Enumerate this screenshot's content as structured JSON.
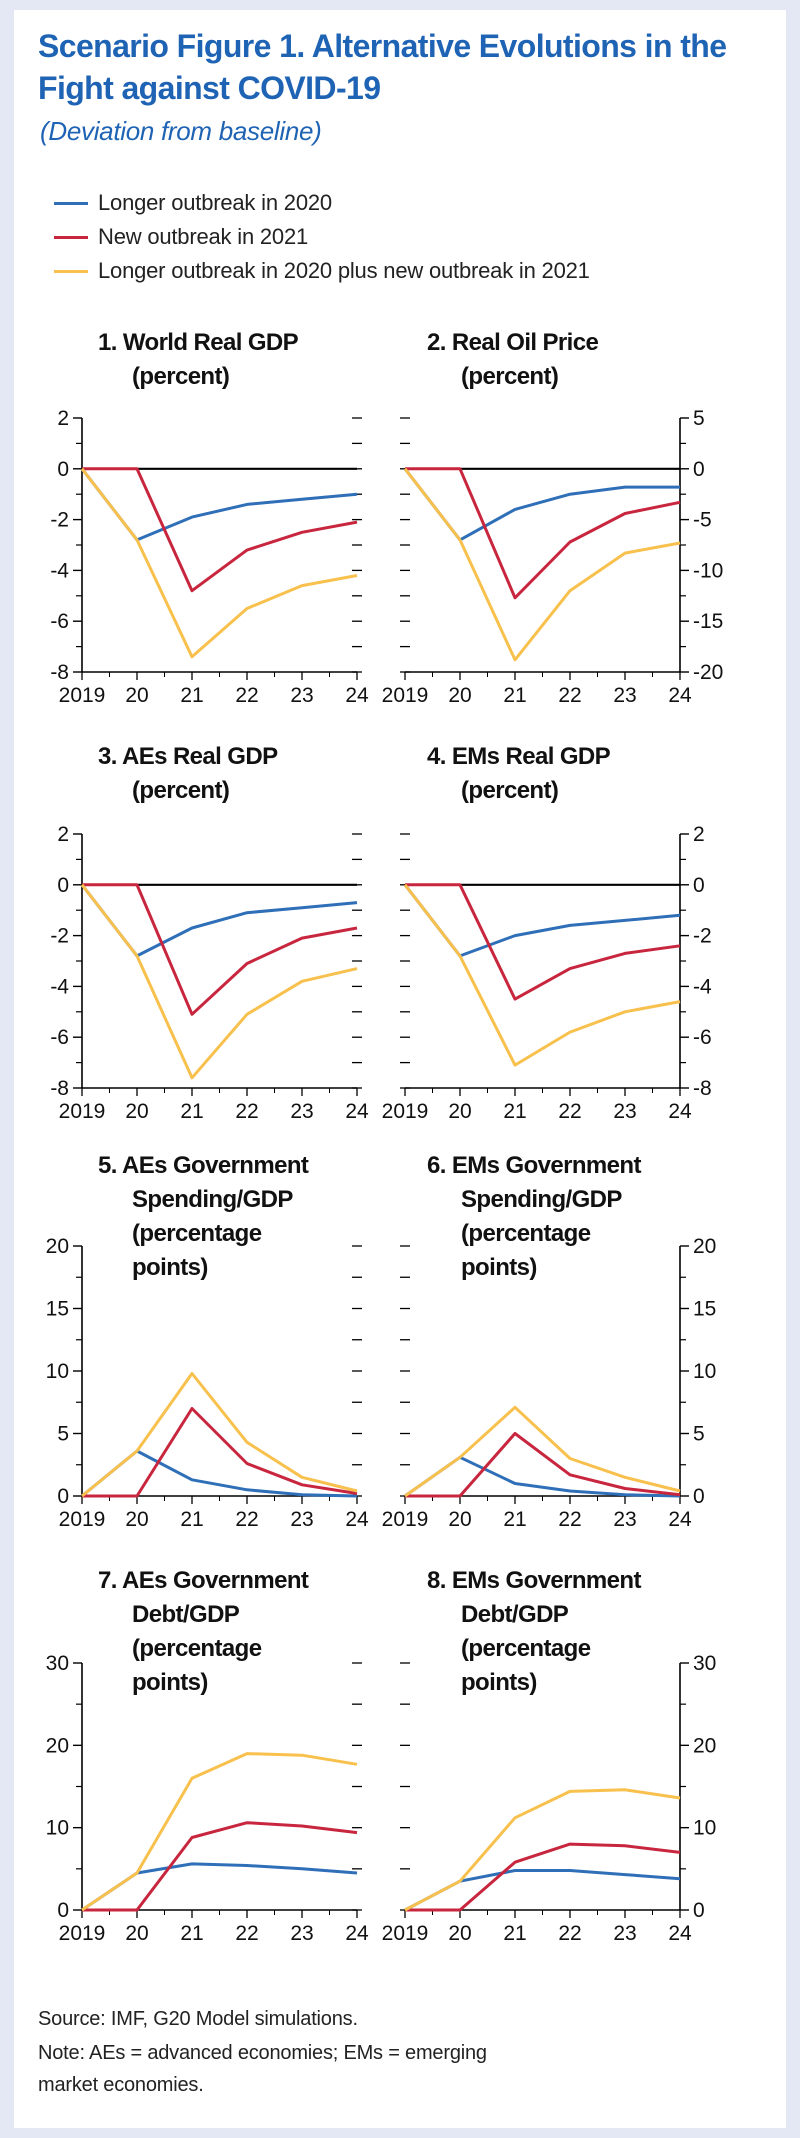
{
  "header": {
    "title_line1": "Scenario Figure 1. Alternative Evolutions in the",
    "title_line2": "Fight against COVID-19",
    "subtitle": "(Deviation from baseline)"
  },
  "legend": [
    {
      "label": "Longer outbreak in 2020",
      "color": "#2e6fb8"
    },
    {
      "label": "New outbreak in 2021",
      "color": "#c8263e"
    },
    {
      "label": "Longer outbreak in 2020 plus new outbreak in 2021",
      "color": "#f8c04c"
    }
  ],
  "chart_data": [
    {
      "type": "line",
      "title": "1. World Real GDP",
      "title_lines": [
        "1. World Real GDP",
        "(percent)"
      ],
      "axis_side": "left",
      "categories": [
        "2019",
        "20",
        "21",
        "22",
        "23",
        "24"
      ],
      "ylim": [
        -8,
        2
      ],
      "yticks": [
        2,
        0,
        -2,
        -4,
        -6,
        -8
      ],
      "yminor": [
        1,
        -1,
        -3,
        -5,
        -7
      ],
      "series": [
        {
          "name": "Longer outbreak in 2020",
          "values": [
            0,
            -2.8,
            -1.9,
            -1.4,
            -1.2,
            -1.0
          ]
        },
        {
          "name": "New outbreak in 2021",
          "values": [
            0,
            0,
            -4.8,
            -3.2,
            -2.5,
            -2.1
          ]
        },
        {
          "name": "Longer outbreak in 2020 plus new outbreak in 2021",
          "values": [
            0,
            -2.8,
            -7.4,
            -5.5,
            -4.6,
            -4.2
          ]
        }
      ]
    },
    {
      "type": "line",
      "title": "2. Real Oil Price",
      "title_lines": [
        "2. Real Oil Price",
        "(percent)"
      ],
      "axis_side": "right",
      "categories": [
        "2019",
        "20",
        "21",
        "22",
        "23",
        "24"
      ],
      "ylim": [
        -20,
        5
      ],
      "yticks": [
        5,
        0,
        -5,
        -10,
        -15,
        -20
      ],
      "yminor": [
        2.5,
        -2.5,
        -7.5,
        -12.5,
        -17.5
      ],
      "series": [
        {
          "name": "Longer outbreak in 2020",
          "values": [
            0,
            -7,
            -4,
            -2.5,
            -1.8,
            -1.8
          ]
        },
        {
          "name": "New outbreak in 2021",
          "values": [
            0,
            0,
            -12.7,
            -7.2,
            -4.4,
            -3.3
          ]
        },
        {
          "name": "Longer outbreak in 2020 plus new outbreak in 2021",
          "values": [
            0,
            -7,
            -18.8,
            -12,
            -8.3,
            -7.3
          ]
        }
      ]
    },
    {
      "type": "line",
      "title": "3. AEs Real GDP",
      "title_lines": [
        "3. AEs Real GDP",
        "(percent)"
      ],
      "axis_side": "left",
      "categories": [
        "2019",
        "20",
        "21",
        "22",
        "23",
        "24"
      ],
      "ylim": [
        -8,
        2
      ],
      "yticks": [
        2,
        0,
        -2,
        -4,
        -6,
        -8
      ],
      "yminor": [
        1,
        -1,
        -3,
        -5,
        -7
      ],
      "series": [
        {
          "name": "Longer outbreak in 2020",
          "values": [
            0,
            -2.8,
            -1.7,
            -1.1,
            -0.9,
            -0.7
          ]
        },
        {
          "name": "New outbreak in 2021",
          "values": [
            0,
            0,
            -5.1,
            -3.1,
            -2.1,
            -1.7
          ]
        },
        {
          "name": "Longer outbreak in 2020 plus new outbreak in 2021",
          "values": [
            0,
            -2.8,
            -7.6,
            -5.1,
            -3.8,
            -3.3
          ]
        }
      ]
    },
    {
      "type": "line",
      "title": "4. EMs Real GDP",
      "title_lines": [
        "4. EMs Real GDP",
        "(percent)"
      ],
      "axis_side": "right",
      "categories": [
        "2019",
        "20",
        "21",
        "22",
        "23",
        "24"
      ],
      "ylim": [
        -8,
        2
      ],
      "yticks": [
        2,
        0,
        -2,
        -4,
        -6,
        -8
      ],
      "yminor": [
        1,
        -1,
        -3,
        -5,
        -7
      ],
      "series": [
        {
          "name": "Longer outbreak in 2020",
          "values": [
            0,
            -2.8,
            -2.0,
            -1.6,
            -1.4,
            -1.2
          ]
        },
        {
          "name": "New outbreak in 2021",
          "values": [
            0,
            0,
            -4.5,
            -3.3,
            -2.7,
            -2.4
          ]
        },
        {
          "name": "Longer outbreak in 2020 plus new outbreak in 2021",
          "values": [
            0,
            -2.8,
            -7.1,
            -5.8,
            -5.0,
            -4.6
          ]
        }
      ]
    },
    {
      "type": "line",
      "title": "5. AEs Government Spending/GDP",
      "title_lines": [
        "5. AEs Government",
        "Spending/GDP",
        "(percentage",
        "points)"
      ],
      "axis_side": "left",
      "categories": [
        "2019",
        "20",
        "21",
        "22",
        "23",
        "24"
      ],
      "ylim": [
        0,
        20
      ],
      "yticks": [
        20,
        15,
        10,
        5,
        0
      ],
      "yminor": [
        17.5,
        12.5,
        7.5,
        2.5
      ],
      "series": [
        {
          "name": "Longer outbreak in 2020",
          "values": [
            0,
            3.6,
            1.3,
            0.5,
            0.1,
            0
          ]
        },
        {
          "name": "New outbreak in 2021",
          "values": [
            0,
            0,
            7,
            2.6,
            0.9,
            0.2
          ]
        },
        {
          "name": "Longer outbreak in 2020 plus new outbreak in 2021",
          "values": [
            0,
            3.6,
            9.8,
            4.3,
            1.5,
            0.4
          ]
        }
      ]
    },
    {
      "type": "line",
      "title": "6. EMs Government Spending/GDP",
      "title_lines": [
        "6. EMs Government",
        "Spending/GDP",
        "(percentage",
        "points)"
      ],
      "axis_side": "right",
      "categories": [
        "2019",
        "20",
        "21",
        "22",
        "23",
        "24"
      ],
      "ylim": [
        0,
        20
      ],
      "yticks": [
        20,
        15,
        10,
        5,
        0
      ],
      "yminor": [
        17.5,
        12.5,
        7.5,
        2.5
      ],
      "series": [
        {
          "name": "Longer outbreak in 2020",
          "values": [
            0,
            3.1,
            1.0,
            0.4,
            0.1,
            0
          ]
        },
        {
          "name": "New outbreak in 2021",
          "values": [
            0,
            0,
            5,
            1.7,
            0.6,
            0.1
          ]
        },
        {
          "name": "Longer outbreak in 2020 plus new outbreak in 2021",
          "values": [
            0,
            3.1,
            7.1,
            3.0,
            1.5,
            0.4
          ]
        }
      ]
    },
    {
      "type": "line",
      "title": "7. AEs Government Debt/GDP",
      "title_lines": [
        "7. AEs Government",
        "Debt/GDP",
        "(percentage",
        "points)"
      ],
      "axis_side": "left",
      "categories": [
        "2019",
        "20",
        "21",
        "22",
        "23",
        "24"
      ],
      "ylim": [
        0,
        30
      ],
      "yticks": [
        30,
        20,
        10,
        0
      ],
      "yminor": [
        25,
        15,
        5
      ],
      "series": [
        {
          "name": "Longer outbreak in 2020",
          "values": [
            0,
            4.5,
            5.6,
            5.4,
            5,
            4.5
          ]
        },
        {
          "name": "New outbreak in 2021",
          "values": [
            0,
            0,
            8.8,
            10.6,
            10.2,
            9.4
          ]
        },
        {
          "name": "Longer outbreak in 2020 plus new outbreak in 2021",
          "values": [
            0,
            4.5,
            16,
            19,
            18.8,
            17.7
          ]
        }
      ]
    },
    {
      "type": "line",
      "title": "8. EMs Government Debt/GDP",
      "title_lines": [
        "8. EMs Government",
        "Debt/GDP",
        "(percentage",
        "points)"
      ],
      "axis_side": "right",
      "categories": [
        "2019",
        "20",
        "21",
        "22",
        "23",
        "24"
      ],
      "ylim": [
        0,
        30
      ],
      "yticks": [
        30,
        20,
        10,
        0
      ],
      "yminor": [
        25,
        15,
        5
      ],
      "series": [
        {
          "name": "Longer outbreak in 2020",
          "values": [
            0,
            3.5,
            4.8,
            4.8,
            4.3,
            3.8
          ]
        },
        {
          "name": "New outbreak in 2021",
          "values": [
            0,
            0,
            5.8,
            8,
            7.8,
            7
          ]
        },
        {
          "name": "Longer outbreak in 2020 plus new outbreak in 2021",
          "values": [
            0,
            3.5,
            11.2,
            14.4,
            14.6,
            13.6
          ]
        }
      ]
    }
  ],
  "footer": {
    "source": "Source: IMF, G20 Model simulations.",
    "note_line1": "Note: AEs = advanced economies; EMs = emerging",
    "note_line2": "market economies."
  }
}
